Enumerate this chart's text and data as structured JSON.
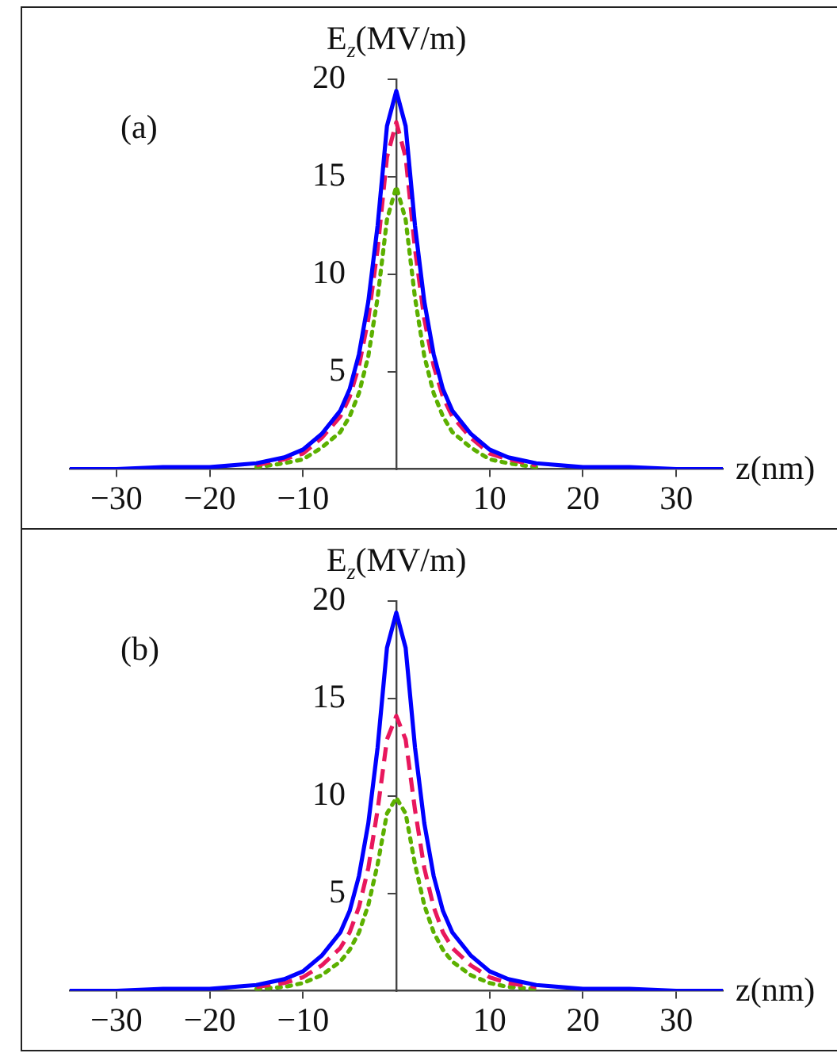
{
  "chart_data": [
    {
      "type": "line",
      "annotations": [
        "(a)"
      ],
      "xlabel": "z(nm)",
      "ylabel": "E$_{z}$(MV/m)",
      "xlim": [
        -35,
        35
      ],
      "xticks": [
        -30,
        -20,
        -10,
        10,
        20,
        30
      ],
      "ylim": [
        0,
        20
      ],
      "yticks": [
        5,
        10,
        15,
        20
      ],
      "grid": false,
      "legend": false,
      "marker": "none",
      "x": [
        -35,
        -30,
        -25,
        -20,
        -15,
        -12,
        -10,
        -8,
        -6,
        -5,
        -4,
        -3,
        -2,
        -1,
        0,
        1,
        2,
        3,
        4,
        5,
        6,
        8,
        10,
        12,
        15,
        20,
        25,
        30,
        35
      ],
      "series": [
        {
          "color": "#0000ff",
          "line_style": "solid",
          "values": [
            0,
            0,
            0.1,
            0.1,
            0.3,
            0.6,
            1.0,
            1.8,
            3.0,
            4.1,
            5.9,
            8.6,
            12.5,
            17.6,
            19.4,
            17.6,
            12.5,
            8.6,
            5.9,
            4.1,
            3.0,
            1.8,
            1.0,
            0.6,
            0.3,
            0.1,
            0.1,
            0,
            0
          ]
        },
        {
          "color": "#e8175d",
          "line_style": "dashed",
          "values": [
            null,
            null,
            null,
            null,
            0.2,
            0.5,
            0.8,
            1.6,
            2.7,
            3.7,
            5.3,
            7.7,
            11.3,
            16.0,
            17.8,
            16.0,
            11.3,
            7.7,
            5.3,
            3.7,
            2.7,
            1.6,
            0.8,
            0.5,
            0.2,
            null,
            null,
            null,
            null
          ]
        },
        {
          "color": "#5cb000",
          "line_style": "dotted",
          "values": [
            null,
            null,
            null,
            null,
            0.1,
            0.3,
            0.5,
            1.1,
            1.9,
            2.7,
            3.9,
            5.8,
            8.8,
            12.8,
            14.5,
            12.8,
            8.8,
            5.8,
            3.9,
            2.7,
            1.9,
            1.1,
            0.5,
            0.3,
            0.1,
            null,
            null,
            null,
            null
          ]
        }
      ]
    },
    {
      "type": "line",
      "annotations": [
        "(b)"
      ],
      "xlabel": "z(nm)",
      "ylabel": "E$_{z}$(MV/m)",
      "xlim": [
        -35,
        35
      ],
      "xticks": [
        -30,
        -20,
        -10,
        10,
        20,
        30
      ],
      "ylim": [
        0,
        20
      ],
      "yticks": [
        5,
        10,
        15,
        20
      ],
      "grid": false,
      "legend": false,
      "marker": "none",
      "x": [
        -35,
        -30,
        -25,
        -20,
        -15,
        -12,
        -10,
        -8,
        -6,
        -5,
        -4,
        -3,
        -2,
        -1,
        0,
        1,
        2,
        3,
        4,
        5,
        6,
        8,
        10,
        12,
        15,
        20,
        25,
        30,
        35
      ],
      "series": [
        {
          "color": "#0000ff",
          "line_style": "solid",
          "values": [
            0,
            0,
            0.1,
            0.1,
            0.3,
            0.6,
            1.0,
            1.8,
            3.0,
            4.1,
            5.9,
            8.6,
            12.5,
            17.6,
            19.4,
            17.6,
            12.5,
            8.6,
            5.9,
            4.1,
            3.0,
            1.8,
            1.0,
            0.6,
            0.3,
            0.1,
            0.1,
            0,
            0
          ]
        },
        {
          "color": "#e8175d",
          "line_style": "dashed",
          "values": [
            null,
            null,
            null,
            null,
            0.2,
            0.4,
            0.7,
            1.3,
            2.2,
            3.0,
            4.3,
            6.3,
            9.3,
            12.9,
            14.1,
            12.9,
            9.3,
            6.3,
            4.3,
            3.0,
            2.2,
            1.3,
            0.7,
            0.4,
            0.2,
            null,
            null,
            null,
            null
          ]
        },
        {
          "color": "#5cb000",
          "line_style": "dotted",
          "values": [
            null,
            null,
            null,
            null,
            0.1,
            0.2,
            0.4,
            0.8,
            1.5,
            2.1,
            3.0,
            4.4,
            6.5,
            9.1,
            9.9,
            9.1,
            6.5,
            4.4,
            3.0,
            2.1,
            1.5,
            0.8,
            0.4,
            0.2,
            0.1,
            null,
            null,
            null,
            null
          ]
        }
      ]
    }
  ]
}
